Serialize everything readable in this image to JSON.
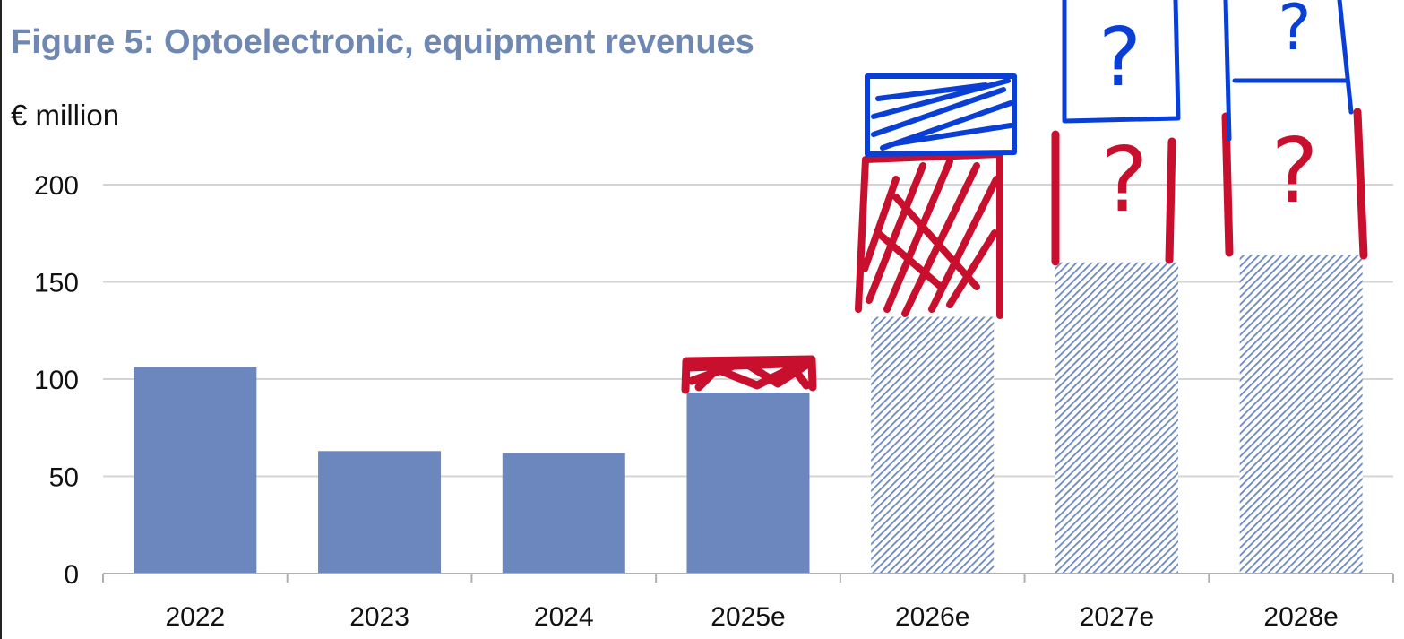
{
  "title": "Figure 5: Optoelectronic, equipment revenues",
  "unit_label": "€ million",
  "colors": {
    "title": "#6f88b3",
    "actual_bar": "#6b87bd",
    "estimate_hatch": "#6b87bd",
    "grid": "#d4d4d4",
    "axis": "#b0b0b0",
    "annotation_red": "#c8102e",
    "annotation_blue": "#0a3fd6"
  },
  "chart_data": {
    "type": "bar",
    "title": "Figure 5: Optoelectronic, equipment revenues",
    "ylabel": "€ million",
    "xlabel": "",
    "categories": [
      "2022",
      "2023",
      "2024",
      "2025e",
      "2026e",
      "2027e",
      "2028e"
    ],
    "values": [
      106,
      63,
      62,
      93,
      132,
      160,
      164
    ],
    "estimate": [
      false,
      false,
      false,
      true,
      true,
      true,
      true
    ],
    "hatched": [
      false,
      false,
      false,
      false,
      true,
      true,
      true
    ],
    "ylim": [
      0,
      200
    ],
    "yticks": [
      0,
      50,
      100,
      150,
      200
    ],
    "grid": true,
    "legend": "none",
    "annotations": {
      "description": "hand-drawn scribbles above 2025e–2028e bars",
      "question_marks": [
        "?",
        "?",
        "?",
        "?"
      ]
    }
  }
}
